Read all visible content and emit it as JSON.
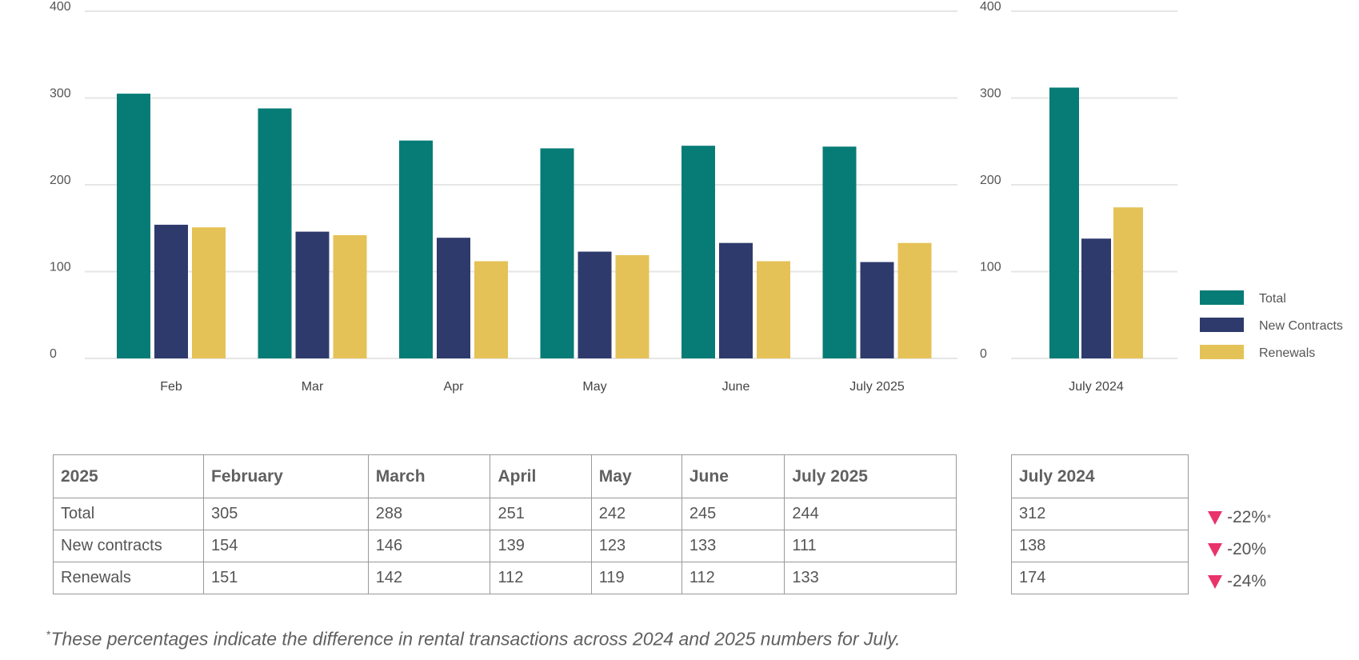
{
  "colors": {
    "total": "#077c76",
    "new_contracts": "#2f3a6c",
    "renewals": "#e5c257",
    "decline": "#e8336b"
  },
  "chart_data": [
    {
      "type": "bar",
      "categories": [
        "Feb",
        "Mar",
        "Apr",
        "May",
        "June",
        "July 2025"
      ],
      "series": [
        {
          "name": "Total",
          "values": [
            305,
            288,
            251,
            242,
            245,
            244
          ]
        },
        {
          "name": "New Contracts",
          "values": [
            154,
            146,
            139,
            123,
            133,
            111
          ]
        },
        {
          "name": "Renewals",
          "values": [
            151,
            142,
            112,
            119,
            112,
            133
          ]
        }
      ],
      "yticks": [
        0,
        100,
        200,
        300,
        400
      ],
      "ylim": [
        0,
        400
      ],
      "grid": true
    },
    {
      "type": "bar",
      "categories": [
        "July 2024"
      ],
      "series": [
        {
          "name": "Total",
          "values": [
            312
          ]
        },
        {
          "name": "New Contracts",
          "values": [
            138
          ]
        },
        {
          "name": "Renewals",
          "values": [
            174
          ]
        }
      ],
      "yticks": [
        0,
        100,
        200,
        300,
        400
      ],
      "ylim": [
        0,
        400
      ],
      "grid": true,
      "legend": "right"
    }
  ],
  "table": {
    "corner": "2025",
    "headers": [
      "February",
      "March",
      "April",
      "May",
      "June",
      "July 2025"
    ],
    "rows": [
      {
        "label": "Total",
        "values": [
          "305",
          "288",
          "251",
          "242",
          "245",
          "244"
        ]
      },
      {
        "label": "New contracts",
        "values": [
          "154",
          "146",
          "139",
          "123",
          "133",
          "111"
        ]
      },
      {
        "label": "Renewals",
        "values": [
          "151",
          "142",
          "112",
          "119",
          "112",
          "133"
        ]
      }
    ]
  },
  "side_table": {
    "header": "July 2024",
    "values": [
      "312",
      "138",
      "174"
    ]
  },
  "changes": [
    {
      "value": "-22%",
      "marker": "*"
    },
    {
      "value": "-20%",
      "marker": ""
    },
    {
      "value": "-24%",
      "marker": ""
    }
  ],
  "footnote": {
    "marker": "*",
    "text": "These percentages indicate the difference in rental transactions across 2024 and 2025 numbers for July."
  }
}
